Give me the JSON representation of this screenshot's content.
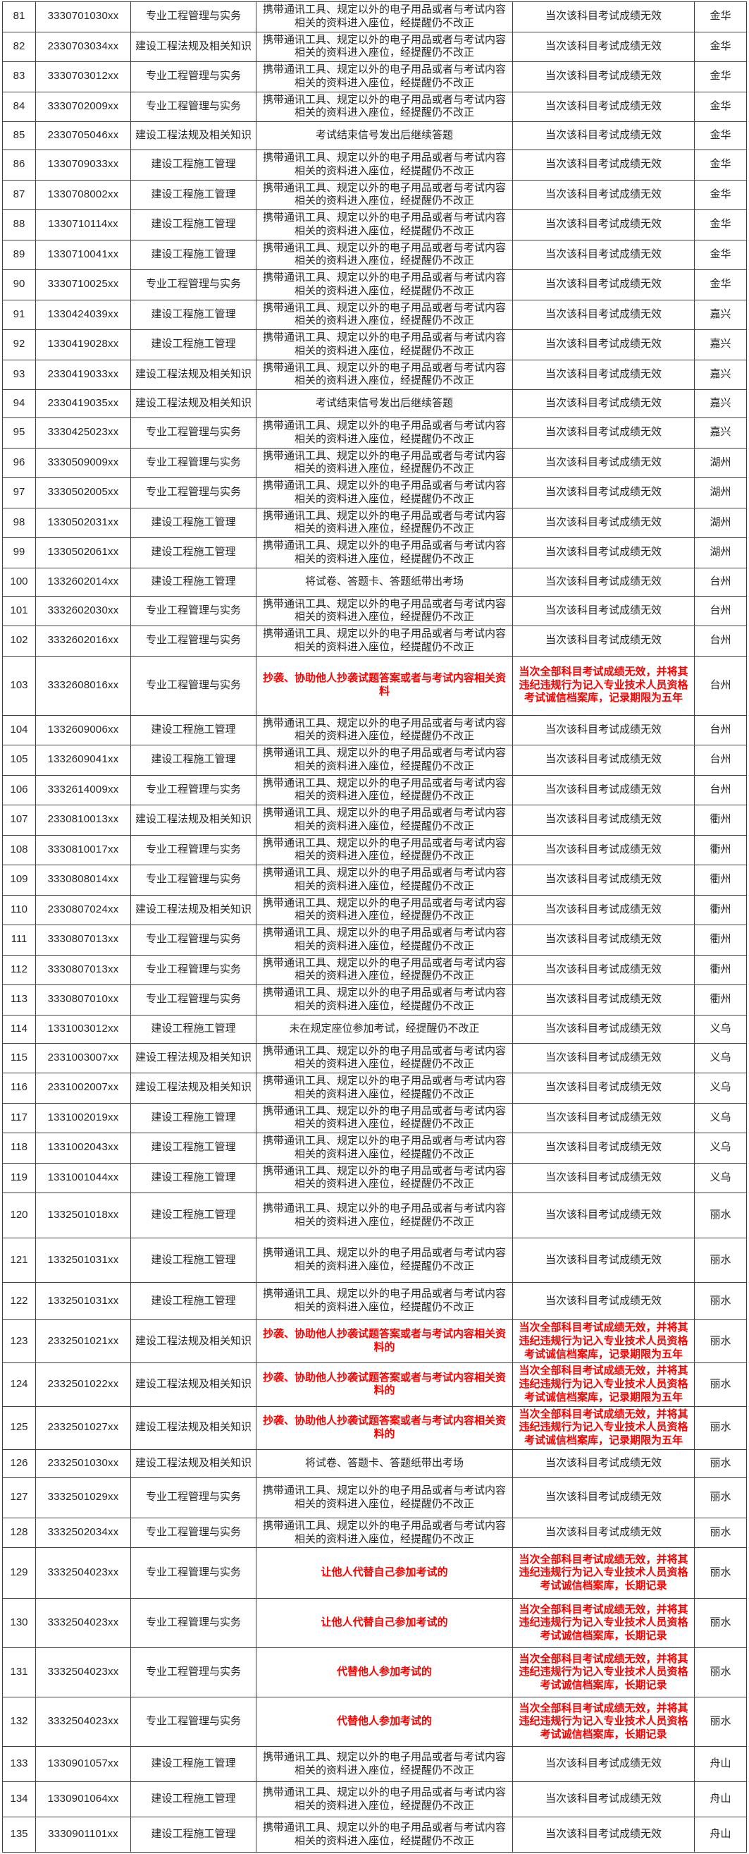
{
  "accent_colors": {
    "severe_text": "#ff0000",
    "normal_text": "#262626",
    "grid_border": "#3f3f3f",
    "background": "#ffffff"
  },
  "texts": {
    "v_standard": "携带通讯工具、规定以外的电子用品或者与考试内容相关的资料进入座位，经提醒仍不改正",
    "v_continue_after_signal": "考试结束信号发出后继续答题",
    "v_take_out_papers": "将试卷、答题卡、答题纸带出考场",
    "v_copy": "抄袭、协助他人抄袭试题答案或者与考试内容相关资料",
    "v_copy_de": "抄袭、协助他人抄袭试题答案或者与考试内容相关资料的",
    "v_wrong_seat": "未在规定座位参加考试，经提醒仍不改正",
    "v_let_other_substitute": "让他人代替自己参加考试的",
    "v_substitute_for_other": "代替他人参加考试的",
    "p_single_invalid": "当次该科目考试成绩无效",
    "p_all_invalid_5y": "当次全部科目考试成绩无效，并将其违纪违规行为记入专业技术人员资格考试诚信档案库，记录期限为五年",
    "p_all_invalid_longterm": "当次全部科目考试成绩无效，并将其违纪违规行为记入专业技术人员资格考试诚信档案库，长期记录"
  },
  "table": {
    "rows": [
      {
        "no": "81",
        "id": "3330701030xx",
        "subject": "专业工程管理与实务",
        "violation": "v_standard",
        "penalty": "p_single_invalid",
        "city": "金华",
        "severe": false
      },
      {
        "no": "82",
        "id": "2330703034xx",
        "subject": "建设工程法规及相关知识",
        "violation": "v_standard",
        "penalty": "p_single_invalid",
        "city": "金华",
        "severe": false
      },
      {
        "no": "83",
        "id": "3330703012xx",
        "subject": "专业工程管理与实务",
        "violation": "v_standard",
        "penalty": "p_single_invalid",
        "city": "金华",
        "severe": false
      },
      {
        "no": "84",
        "id": "3330702009xx",
        "subject": "专业工程管理与实务",
        "violation": "v_standard",
        "penalty": "p_single_invalid",
        "city": "金华",
        "severe": false
      },
      {
        "no": "85",
        "id": "2330705046xx",
        "subject": "建设工程法规及相关知识",
        "violation": "v_continue_after_signal",
        "penalty": "p_single_invalid",
        "city": "金华",
        "severe": false
      },
      {
        "no": "86",
        "id": "1330709033xx",
        "subject": "建设工程施工管理",
        "violation": "v_standard",
        "penalty": "p_single_invalid",
        "city": "金华",
        "severe": false
      },
      {
        "no": "87",
        "id": "1330708002xx",
        "subject": "建设工程施工管理",
        "violation": "v_standard",
        "penalty": "p_single_invalid",
        "city": "金华",
        "severe": false
      },
      {
        "no": "88",
        "id": "1330710114xx",
        "subject": "建设工程施工管理",
        "violation": "v_standard",
        "penalty": "p_single_invalid",
        "city": "金华",
        "severe": false
      },
      {
        "no": "89",
        "id": "1330710041xx",
        "subject": "建设工程施工管理",
        "violation": "v_standard",
        "penalty": "p_single_invalid",
        "city": "金华",
        "severe": false
      },
      {
        "no": "90",
        "id": "3330710025xx",
        "subject": "专业工程管理与实务",
        "violation": "v_standard",
        "penalty": "p_single_invalid",
        "city": "金华",
        "severe": false
      },
      {
        "no": "91",
        "id": "1330424039xx",
        "subject": "建设工程施工管理",
        "violation": "v_standard",
        "penalty": "p_single_invalid",
        "city": "嘉兴",
        "severe": false
      },
      {
        "no": "92",
        "id": "1330419028xx",
        "subject": "建设工程施工管理",
        "violation": "v_standard",
        "penalty": "p_single_invalid",
        "city": "嘉兴",
        "severe": false
      },
      {
        "no": "93",
        "id": "2330419033xx",
        "subject": "建设工程法规及相关知识",
        "violation": "v_standard",
        "penalty": "p_single_invalid",
        "city": "嘉兴",
        "severe": false
      },
      {
        "no": "94",
        "id": "2330419035xx",
        "subject": "建设工程法规及相关知识",
        "violation": "v_continue_after_signal",
        "penalty": "p_single_invalid",
        "city": "嘉兴",
        "severe": false
      },
      {
        "no": "95",
        "id": "3330425023xx",
        "subject": "专业工程管理与实务",
        "violation": "v_standard",
        "penalty": "p_single_invalid",
        "city": "嘉兴",
        "severe": false
      },
      {
        "no": "96",
        "id": "3330509009xx",
        "subject": "专业工程管理与实务",
        "violation": "v_standard",
        "penalty": "p_single_invalid",
        "city": "湖州",
        "severe": false
      },
      {
        "no": "97",
        "id": "3330502005xx",
        "subject": "专业工程管理与实务",
        "violation": "v_standard",
        "penalty": "p_single_invalid",
        "city": "湖州",
        "severe": false
      },
      {
        "no": "98",
        "id": "1330502031xx",
        "subject": "建设工程施工管理",
        "violation": "v_standard",
        "penalty": "p_single_invalid",
        "city": "湖州",
        "severe": false
      },
      {
        "no": "99",
        "id": "1330502061xx",
        "subject": "建设工程施工管理",
        "violation": "v_standard",
        "penalty": "p_single_invalid",
        "city": "湖州",
        "severe": false
      },
      {
        "no": "100",
        "id": "1332602014xx",
        "subject": "建设工程施工管理",
        "violation": "v_take_out_papers",
        "penalty": "p_single_invalid",
        "city": "台州",
        "severe": false
      },
      {
        "no": "101",
        "id": "3332602030xx",
        "subject": "专业工程管理与实务",
        "violation": "v_standard",
        "penalty": "p_single_invalid",
        "city": "台州",
        "severe": false
      },
      {
        "no": "102",
        "id": "3332602016xx",
        "subject": "专业工程管理与实务",
        "violation": "v_standard",
        "penalty": "p_single_invalid",
        "city": "台州",
        "severe": false
      },
      {
        "no": "103",
        "id": "3332608016xx",
        "subject": "专业工程管理与实务",
        "violation": "v_copy",
        "penalty": "p_all_invalid_5y",
        "city": "台州",
        "severe": true
      },
      {
        "no": "104",
        "id": "1332609006xx",
        "subject": "建设工程施工管理",
        "violation": "v_standard",
        "penalty": "p_single_invalid",
        "city": "台州",
        "severe": false
      },
      {
        "no": "105",
        "id": "1332609041xx",
        "subject": "建设工程施工管理",
        "violation": "v_standard",
        "penalty": "p_single_invalid",
        "city": "台州",
        "severe": false
      },
      {
        "no": "106",
        "id": "3332614009xx",
        "subject": "专业工程管理与实务",
        "violation": "v_standard",
        "penalty": "p_single_invalid",
        "city": "台州",
        "severe": false
      },
      {
        "no": "107",
        "id": "2330810013xx",
        "subject": "建设工程法规及相关知识",
        "violation": "v_standard",
        "penalty": "p_single_invalid",
        "city": "衢州",
        "severe": false
      },
      {
        "no": "108",
        "id": "3330810017xx",
        "subject": "专业工程管理与实务",
        "violation": "v_standard",
        "penalty": "p_single_invalid",
        "city": "衢州",
        "severe": false
      },
      {
        "no": "109",
        "id": "3330808014xx",
        "subject": "专业工程管理与实务",
        "violation": "v_standard",
        "penalty": "p_single_invalid",
        "city": "衢州",
        "severe": false
      },
      {
        "no": "110",
        "id": "2330807024xx",
        "subject": "建设工程法规及相关知识",
        "violation": "v_standard",
        "penalty": "p_single_invalid",
        "city": "衢州",
        "severe": false
      },
      {
        "no": "111",
        "id": "3330807013xx",
        "subject": "专业工程管理与实务",
        "violation": "v_standard",
        "penalty": "p_single_invalid",
        "city": "衢州",
        "severe": false
      },
      {
        "no": "112",
        "id": "3330807013xx",
        "subject": "专业工程管理与实务",
        "violation": "v_standard",
        "penalty": "p_single_invalid",
        "city": "衢州",
        "severe": false
      },
      {
        "no": "113",
        "id": "3330807010xx",
        "subject": "专业工程管理与实务",
        "violation": "v_standard",
        "penalty": "p_single_invalid",
        "city": "衢州",
        "severe": false
      },
      {
        "no": "114",
        "id": "1331003012xx",
        "subject": "建设工程施工管理",
        "violation": "v_wrong_seat",
        "penalty": "p_single_invalid",
        "city": "义乌",
        "severe": false
      },
      {
        "no": "115",
        "id": "2331003007xx",
        "subject": "建设工程法规及相关知识",
        "violation": "v_standard",
        "penalty": "p_single_invalid",
        "city": "义乌",
        "severe": false
      },
      {
        "no": "116",
        "id": "2331002007xx",
        "subject": "建设工程法规及相关知识",
        "violation": "v_standard",
        "penalty": "p_single_invalid",
        "city": "义乌",
        "severe": false
      },
      {
        "no": "117",
        "id": "1331002019xx",
        "subject": "建设工程施工管理",
        "violation": "v_standard",
        "penalty": "p_single_invalid",
        "city": "义乌",
        "severe": false
      },
      {
        "no": "118",
        "id": "1331002043xx",
        "subject": "建设工程施工管理",
        "violation": "v_standard",
        "penalty": "p_single_invalid",
        "city": "义乌",
        "severe": false
      },
      {
        "no": "119",
        "id": "1331001044xx",
        "subject": "建设工程施工管理",
        "violation": "v_standard",
        "penalty": "p_single_invalid",
        "city": "义乌",
        "severe": false
      },
      {
        "no": "120",
        "id": "1332501018xx",
        "subject": "建设工程施工管理",
        "violation": "v_standard",
        "penalty": "p_single_invalid",
        "city": "丽水",
        "severe": false
      },
      {
        "no": "121",
        "id": "1332501031xx",
        "subject": "建设工程施工管理",
        "violation": "v_standard",
        "penalty": "p_single_invalid",
        "city": "丽水",
        "severe": false
      },
      {
        "no": "122",
        "id": "1332501031xx",
        "subject": "建设工程施工管理",
        "violation": "v_standard",
        "penalty": "p_single_invalid",
        "city": "丽水",
        "severe": false
      },
      {
        "no": "123",
        "id": "2332501021xx",
        "subject": "建设工程法规及相关知识",
        "violation": "v_copy_de",
        "penalty": "p_all_invalid_5y",
        "city": "丽水",
        "severe": true
      },
      {
        "no": "124",
        "id": "2332501022xx",
        "subject": "建设工程法规及相关知识",
        "violation": "v_copy_de",
        "penalty": "p_all_invalid_5y",
        "city": "丽水",
        "severe": true
      },
      {
        "no": "125",
        "id": "2332501027xx",
        "subject": "建设工程法规及相关知识",
        "violation": "v_copy_de",
        "penalty": "p_all_invalid_5y",
        "city": "丽水",
        "severe": true
      },
      {
        "no": "126",
        "id": "2332501030xx",
        "subject": "建设工程法规及相关知识",
        "violation": "v_take_out_papers",
        "penalty": "p_single_invalid",
        "city": "丽水",
        "severe": false
      },
      {
        "no": "127",
        "id": "3332501029xx",
        "subject": "专业工程管理与实务",
        "violation": "v_standard",
        "penalty": "p_single_invalid",
        "city": "丽水",
        "severe": false
      },
      {
        "no": "128",
        "id": "3332502034xx",
        "subject": "专业工程管理与实务",
        "violation": "v_standard",
        "penalty": "p_single_invalid",
        "city": "丽水",
        "severe": false
      },
      {
        "no": "129",
        "id": "3332504023xx",
        "subject": "专业工程管理与实务",
        "violation": "v_let_other_substitute",
        "penalty": "p_all_invalid_longterm",
        "city": "丽水",
        "severe": true
      },
      {
        "no": "130",
        "id": "3332504023xx",
        "subject": "专业工程管理与实务",
        "violation": "v_let_other_substitute",
        "penalty": "p_all_invalid_longterm",
        "city": "丽水",
        "severe": true
      },
      {
        "no": "131",
        "id": "3332504023xx",
        "subject": "专业工程管理与实务",
        "violation": "v_substitute_for_other",
        "penalty": "p_all_invalid_longterm",
        "city": "丽水",
        "severe": true
      },
      {
        "no": "132",
        "id": "3332504023xx",
        "subject": "专业工程管理与实务",
        "violation": "v_substitute_for_other",
        "penalty": "p_all_invalid_longterm",
        "city": "丽水",
        "severe": true
      },
      {
        "no": "133",
        "id": "1330901057xx",
        "subject": "建设工程施工管理",
        "violation": "v_standard",
        "penalty": "p_single_invalid",
        "city": "舟山",
        "severe": false
      },
      {
        "no": "134",
        "id": "1330901064xx",
        "subject": "建设工程施工管理",
        "violation": "v_standard",
        "penalty": "p_single_invalid",
        "city": "舟山",
        "severe": false
      },
      {
        "no": "135",
        "id": "3330901101xx",
        "subject": "建设工程施工管理",
        "violation": "v_standard",
        "penalty": "p_single_invalid",
        "city": "舟山",
        "severe": false
      }
    ]
  }
}
